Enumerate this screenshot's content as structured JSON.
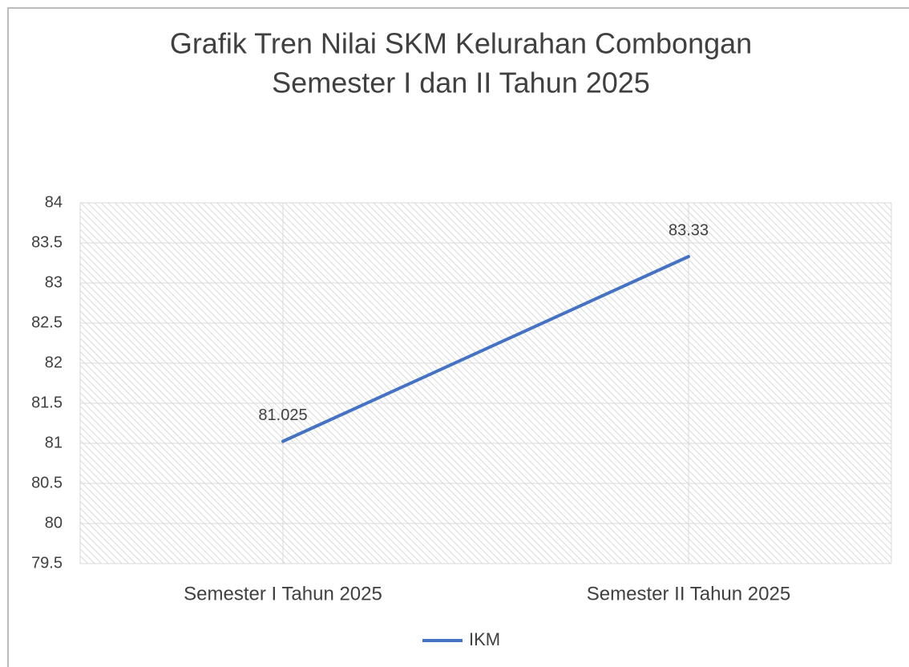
{
  "chart_data": {
    "type": "line",
    "title": [
      "Grafik Tren Nilai SKM Kelurahan Combongan",
      "Semester I dan II Tahun 2025"
    ],
    "categories": [
      "Semester I Tahun 2025",
      "Semester II Tahun 2025"
    ],
    "series": [
      {
        "name": "IKM",
        "color": "#4472c4",
        "values": [
          81.025,
          83.33
        ]
      }
    ],
    "ylim": [
      79.5,
      84
    ],
    "yticks": [
      79.5,
      80,
      80.5,
      81,
      81.5,
      82,
      82.5,
      83,
      83.5,
      84
    ],
    "grid": true,
    "legend": "bottom"
  }
}
